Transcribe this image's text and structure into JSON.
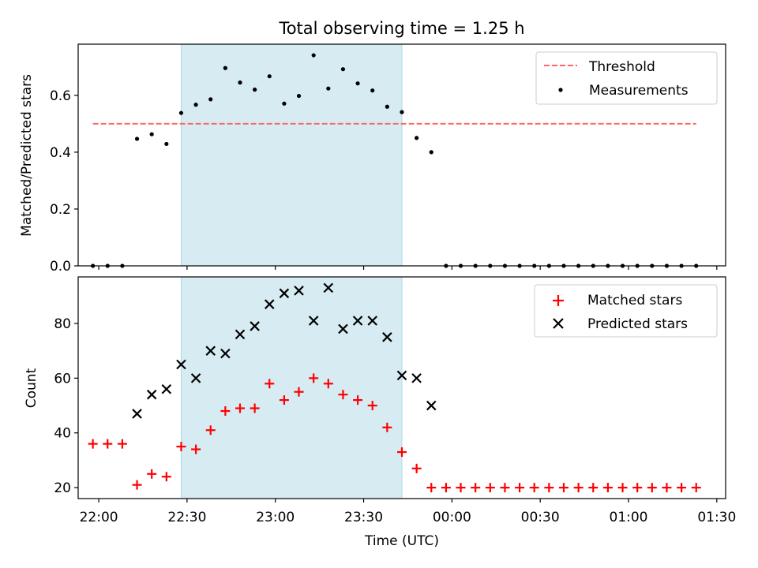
{
  "chart_data": [
    {
      "type": "scatter",
      "title": "Total observing time = 1.25 h",
      "ylabel": "Matched/Predicted stars",
      "xlabel": "",
      "ylim": [
        0,
        0.78
      ],
      "xlim": [
        "21:53",
        "01:33"
      ],
      "yticks": [
        "0.0",
        "0.2",
        "0.4",
        "0.6"
      ],
      "grid": false,
      "legend_position": "upper right",
      "highlight_span": {
        "start": "22:28",
        "end": "23:43",
        "color": "#add8e6"
      },
      "threshold": {
        "name": "Threshold",
        "value": 0.5,
        "x_start": "21:58",
        "x_end": "01:23",
        "color": "#ff6666",
        "style": "dashed"
      },
      "series": [
        {
          "name": "Measurements",
          "marker": "dot",
          "color": "#000000",
          "points": [
            [
              "21:58",
              0.0
            ],
            [
              "22:03",
              0.0
            ],
            [
              "22:08",
              0.0
            ],
            [
              "22:13",
              0.447
            ],
            [
              "22:18",
              0.463
            ],
            [
              "22:23",
              0.429
            ],
            [
              "22:28",
              0.538
            ],
            [
              "22:33",
              0.567
            ],
            [
              "22:38",
              0.586
            ],
            [
              "22:43",
              0.696
            ],
            [
              "22:48",
              0.645
            ],
            [
              "22:53",
              0.62
            ],
            [
              "22:58",
              0.667
            ],
            [
              "23:03",
              0.571
            ],
            [
              "23:08",
              0.598
            ],
            [
              "23:13",
              0.741
            ],
            [
              "23:18",
              0.624
            ],
            [
              "23:23",
              0.692
            ],
            [
              "23:28",
              0.642
            ],
            [
              "23:33",
              0.617
            ],
            [
              "23:38",
              0.56
            ],
            [
              "23:43",
              0.541
            ],
            [
              "23:48",
              0.45
            ],
            [
              "23:53",
              0.4
            ],
            [
              "23:58",
              0.0
            ],
            [
              "00:03",
              0.0
            ],
            [
              "00:08",
              0.0
            ],
            [
              "00:13",
              0.0
            ],
            [
              "00:18",
              0.0
            ],
            [
              "00:23",
              0.0
            ],
            [
              "00:28",
              0.0
            ],
            [
              "00:33",
              0.0
            ],
            [
              "00:38",
              0.0
            ],
            [
              "00:43",
              0.0
            ],
            [
              "00:48",
              0.0
            ],
            [
              "00:53",
              0.0
            ],
            [
              "00:58",
              0.0
            ],
            [
              "01:03",
              0.0
            ],
            [
              "01:08",
              0.0
            ],
            [
              "01:13",
              0.0
            ],
            [
              "01:18",
              0.0
            ],
            [
              "01:23",
              0.0
            ]
          ]
        }
      ]
    },
    {
      "type": "scatter",
      "title": "",
      "ylabel": "Count",
      "xlabel": "Time (UTC)",
      "ylim": [
        16,
        97
      ],
      "xlim": [
        "21:53",
        "01:33"
      ],
      "yticks": [
        "20",
        "40",
        "60",
        "80"
      ],
      "xticks": [
        "22:00",
        "22:30",
        "23:00",
        "23:30",
        "00:00",
        "00:30",
        "01:00",
        "01:30"
      ],
      "grid": false,
      "legend_position": "upper right",
      "highlight_span": {
        "start": "22:28",
        "end": "23:43",
        "color": "#add8e6"
      },
      "series": [
        {
          "name": "Matched stars",
          "marker": "plus",
          "color": "#ff0000",
          "points": [
            [
              "21:58",
              36
            ],
            [
              "22:03",
              36
            ],
            [
              "22:08",
              36
            ],
            [
              "22:13",
              21
            ],
            [
              "22:18",
              25
            ],
            [
              "22:23",
              24
            ],
            [
              "22:28",
              35
            ],
            [
              "22:33",
              34
            ],
            [
              "22:38",
              41
            ],
            [
              "22:43",
              48
            ],
            [
              "22:48",
              49
            ],
            [
              "22:53",
              49
            ],
            [
              "22:58",
              58
            ],
            [
              "23:03",
              52
            ],
            [
              "23:08",
              55
            ],
            [
              "23:13",
              60
            ],
            [
              "23:18",
              58
            ],
            [
              "23:23",
              54
            ],
            [
              "23:28",
              52
            ],
            [
              "23:33",
              50
            ],
            [
              "23:38",
              42
            ],
            [
              "23:43",
              33
            ],
            [
              "23:48",
              27
            ],
            [
              "23:53",
              20
            ],
            [
              "23:58",
              20
            ],
            [
              "00:03",
              20
            ],
            [
              "00:08",
              20
            ],
            [
              "00:13",
              20
            ],
            [
              "00:18",
              20
            ],
            [
              "00:23",
              20
            ],
            [
              "00:28",
              20
            ],
            [
              "00:33",
              20
            ],
            [
              "00:38",
              20
            ],
            [
              "00:43",
              20
            ],
            [
              "00:48",
              20
            ],
            [
              "00:53",
              20
            ],
            [
              "00:58",
              20
            ],
            [
              "01:03",
              20
            ],
            [
              "01:08",
              20
            ],
            [
              "01:13",
              20
            ],
            [
              "01:18",
              20
            ],
            [
              "01:23",
              20
            ]
          ]
        },
        {
          "name": "Predicted stars",
          "marker": "x",
          "color": "#000000",
          "points": [
            [
              "22:13",
              47
            ],
            [
              "22:18",
              54
            ],
            [
              "22:23",
              56
            ],
            [
              "22:28",
              65
            ],
            [
              "22:33",
              60
            ],
            [
              "22:38",
              70
            ],
            [
              "22:43",
              69
            ],
            [
              "22:48",
              76
            ],
            [
              "22:53",
              79
            ],
            [
              "22:58",
              87
            ],
            [
              "23:03",
              91
            ],
            [
              "23:08",
              92
            ],
            [
              "23:13",
              81
            ],
            [
              "23:18",
              93
            ],
            [
              "23:23",
              78
            ],
            [
              "23:28",
              81
            ],
            [
              "23:33",
              81
            ],
            [
              "23:38",
              75
            ],
            [
              "23:43",
              61
            ],
            [
              "23:48",
              60
            ],
            [
              "23:53",
              50
            ]
          ]
        }
      ]
    }
  ]
}
